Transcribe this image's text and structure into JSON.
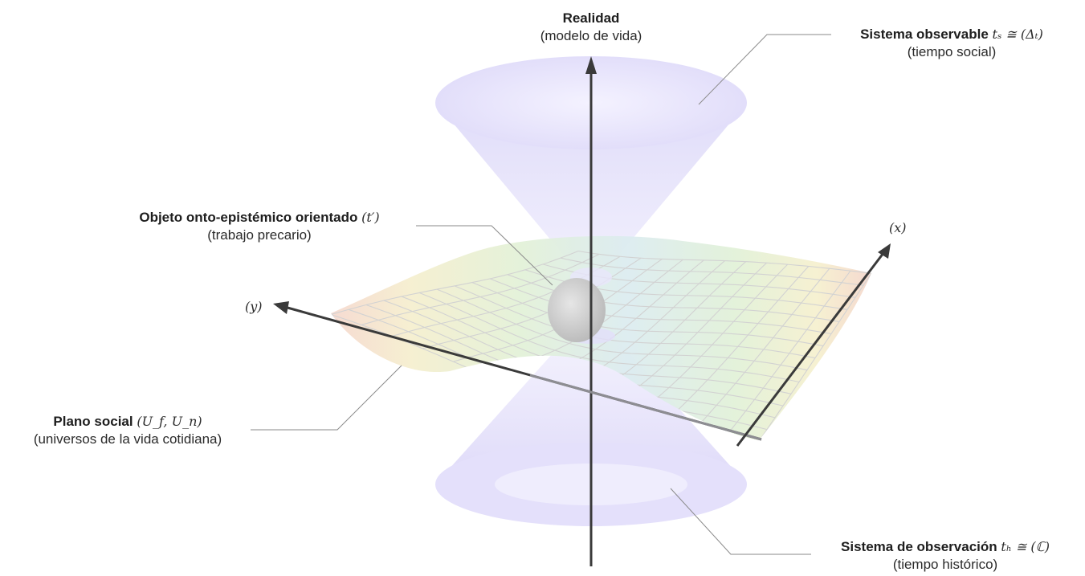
{
  "labels": {
    "realidad": {
      "title": "Realidad",
      "subtitle": "(modelo de vida)"
    },
    "sistema_observable": {
      "title": "Sistema observable",
      "math": "tₛ ≅ (Δₜ)",
      "subtitle": "(tiempo social)"
    },
    "objeto": {
      "title": "Objeto onto-epistémico orientado",
      "math": "(t′)",
      "subtitle": "(trabajo precario)"
    },
    "plano_social": {
      "title": "Plano social",
      "math": "(U_f, U_n)",
      "subtitle": "(universos de la vida cotidiana)"
    },
    "sistema_observacion": {
      "title": "Sistema de observación",
      "math": "tₕ ≅ (ℂ)",
      "subtitle": "(tiempo histórico)"
    }
  },
  "axes": {
    "x": "(x)",
    "y": "(y)"
  },
  "colors": {
    "axis": "#3a3a3a",
    "cone": "#c9c3f2",
    "leader": "#8a8a8a",
    "sphere": "#cfcfcf",
    "grid": "#d8d8d8"
  }
}
